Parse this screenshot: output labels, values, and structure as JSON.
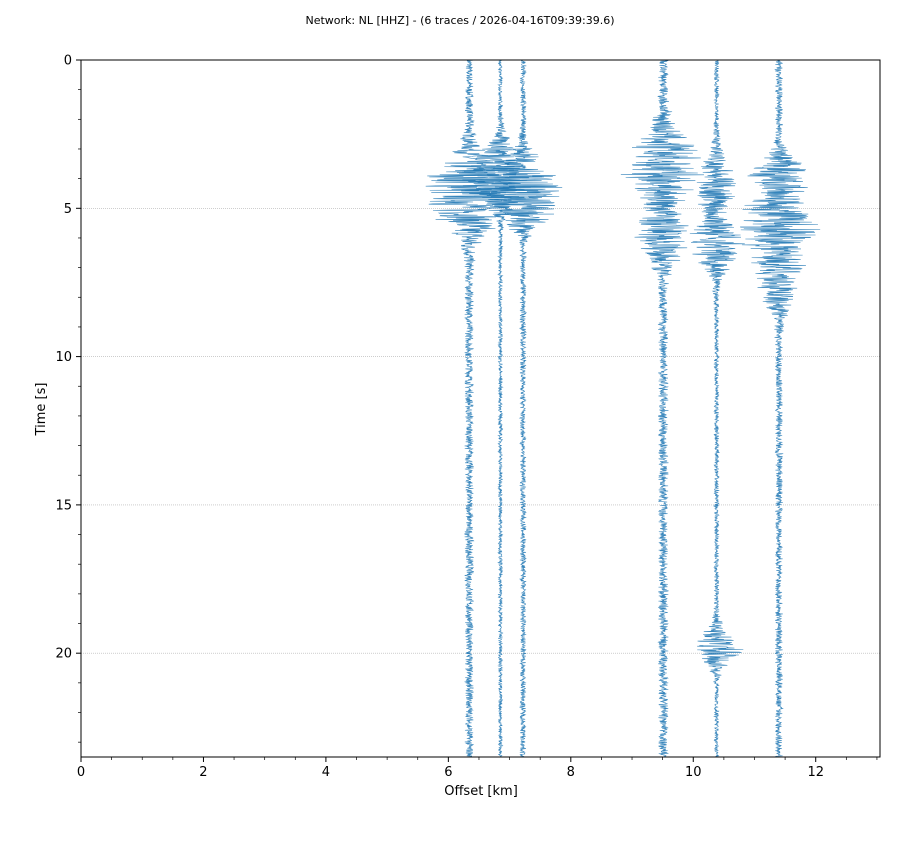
{
  "chart_data": {
    "type": "line",
    "title": "Network: NL [HHZ] - (6 traces / 2026-04-16T09:39:39.6)",
    "xlabel": "Offset [km]",
    "ylabel": "Time [s]",
    "xlim": [
      0,
      13.05
    ],
    "ylim": [
      23.5,
      0
    ],
    "y_inverted": true,
    "x_ticks": [
      "0",
      "2",
      "4",
      "6",
      "8",
      "10",
      "12"
    ],
    "y_ticks": [
      "0",
      "5",
      "10",
      "15",
      "20"
    ],
    "grid": "horizontal",
    "trace_color": "#1f77b4",
    "series": [
      {
        "offset": 6.34,
        "bursts": [
          {
            "time": 4.3,
            "amplitude": 1.25,
            "width": 1.1
          },
          {
            "time": 5.5,
            "amplitude": 0.45,
            "width": 0.8
          }
        ],
        "noise": 0.14
      },
      {
        "offset": 6.85,
        "bursts": [
          {
            "time": 3.6,
            "amplitude": 0.75,
            "width": 0.9
          },
          {
            "time": 4.3,
            "amplitude": 0.9,
            "width": 0.7
          }
        ],
        "noise": 0.07
      },
      {
        "offset": 7.22,
        "bursts": [
          {
            "time": 4.2,
            "amplitude": 1.3,
            "width": 0.9
          },
          {
            "time": 5.2,
            "amplitude": 0.55,
            "width": 0.6
          }
        ],
        "noise": 0.1
      },
      {
        "offset": 9.51,
        "bursts": [
          {
            "time": 3.6,
            "amplitude": 1.2,
            "width": 1.2
          },
          {
            "time": 6.0,
            "amplitude": 0.75,
            "width": 0.9
          }
        ],
        "noise": 0.16
      },
      {
        "offset": 10.38,
        "bursts": [
          {
            "time": 4.2,
            "amplitude": 0.6,
            "width": 1.0
          },
          {
            "time": 6.2,
            "amplitude": 0.85,
            "width": 0.9
          },
          {
            "time": 19.8,
            "amplitude": 0.8,
            "width": 0.6
          }
        ],
        "noise": 0.08
      },
      {
        "offset": 11.4,
        "bursts": [
          {
            "time": 3.8,
            "amplitude": 0.75,
            "width": 0.6
          },
          {
            "time": 5.6,
            "amplitude": 1.25,
            "width": 1.2
          },
          {
            "time": 7.5,
            "amplitude": 0.55,
            "width": 1.0
          }
        ],
        "noise": 0.12
      }
    ]
  }
}
